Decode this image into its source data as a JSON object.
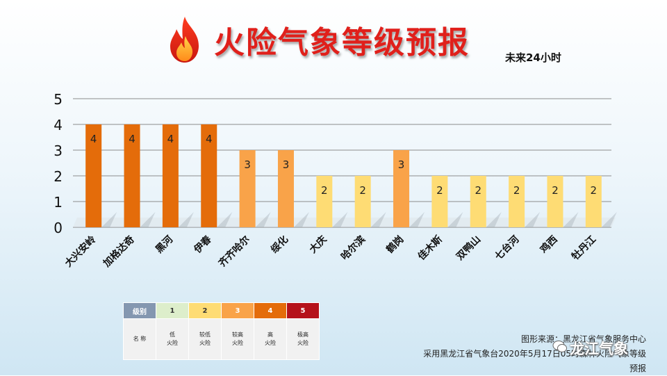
{
  "title": "火险气象等级预报",
  "subtitle": "未来24小时",
  "chart_data": {
    "type": "bar",
    "categories": [
      "大兴安岭",
      "加格达奇",
      "黑河",
      "伊春",
      "齐齐哈尔",
      "绥化",
      "大庆",
      "哈尔滨",
      "鹤岗",
      "佳木斯",
      "双鸭山",
      "七台河",
      "鸡西",
      "牡丹江"
    ],
    "values": [
      4,
      4,
      4,
      4,
      3,
      3,
      2,
      2,
      3,
      2,
      2,
      2,
      2,
      2
    ],
    "ylim": [
      0,
      5
    ],
    "yticks": [
      "0",
      "1",
      "2",
      "3",
      "4",
      "5"
    ],
    "grid": true,
    "level_colors": {
      "2": "#fedc74",
      "3": "#f9a349",
      "4": "#e46c0a"
    }
  },
  "legend": {
    "header_label": "级别",
    "name_label": "名 称",
    "levels": [
      {
        "level": "1",
        "name": "低\n火险",
        "color": "#ddeecb",
        "text_color": "#333333"
      },
      {
        "level": "2",
        "name": "较低\n火险",
        "color": "#fedc74",
        "text_color": "#333333"
      },
      {
        "level": "3",
        "name": "较高\n火险",
        "color": "#f9a349",
        "text_color": "#ffffff"
      },
      {
        "level": "4",
        "name": "高\n火险",
        "color": "#e46c0a",
        "text_color": "#ffffff"
      },
      {
        "level": "5",
        "name": "极高\n火险",
        "color": "#b5121b",
        "text_color": "#ffffff"
      }
    ],
    "header_color": "#8497b0"
  },
  "source_line1": "图形来源：黑龙江省气象服务中心",
  "source_line2": "采用黑龙江省气象台2020年5月17日05时森林火险气象等级预报",
  "watermark": "龙江气象"
}
